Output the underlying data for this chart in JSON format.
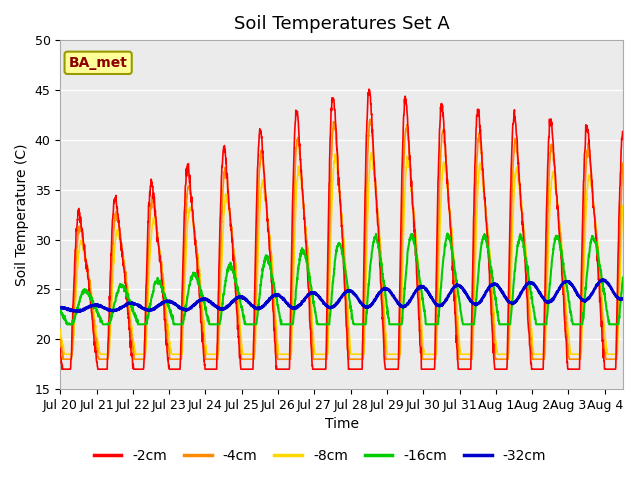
{
  "title": "Soil Temperatures Set A",
  "xlabel": "Time",
  "ylabel": "Soil Temperature (C)",
  "ylim": [
    15,
    50
  ],
  "annotation": "BA_met",
  "annotation_color": "#8B0000",
  "annotation_bg": "#FFFF99",
  "background_inner": "#EBEBEB",
  "background_outer": "#FFFFFF",
  "grid_color": "#FFFFFF",
  "legend_entries": [
    "-2cm",
    "-4cm",
    "-8cm",
    "-16cm",
    "-32cm"
  ],
  "legend_colors": [
    "#FF0000",
    "#FF8C00",
    "#FFD700",
    "#00CC00",
    "#0000CD"
  ],
  "xtick_labels": [
    "Jul 20",
    "Jul 21",
    "Jul 22",
    "Jul 23",
    "Jul 24",
    "Jul 25",
    "Jul 26",
    "Jul 27",
    "Jul 28",
    "Jul 29",
    "Jul 30",
    "Jul 31",
    "Aug 1",
    "Aug 2",
    "Aug 3",
    "Aug 4"
  ],
  "line_widths": [
    1.2,
    1.2,
    1.2,
    1.5,
    2.0
  ],
  "n_days": 15.5
}
